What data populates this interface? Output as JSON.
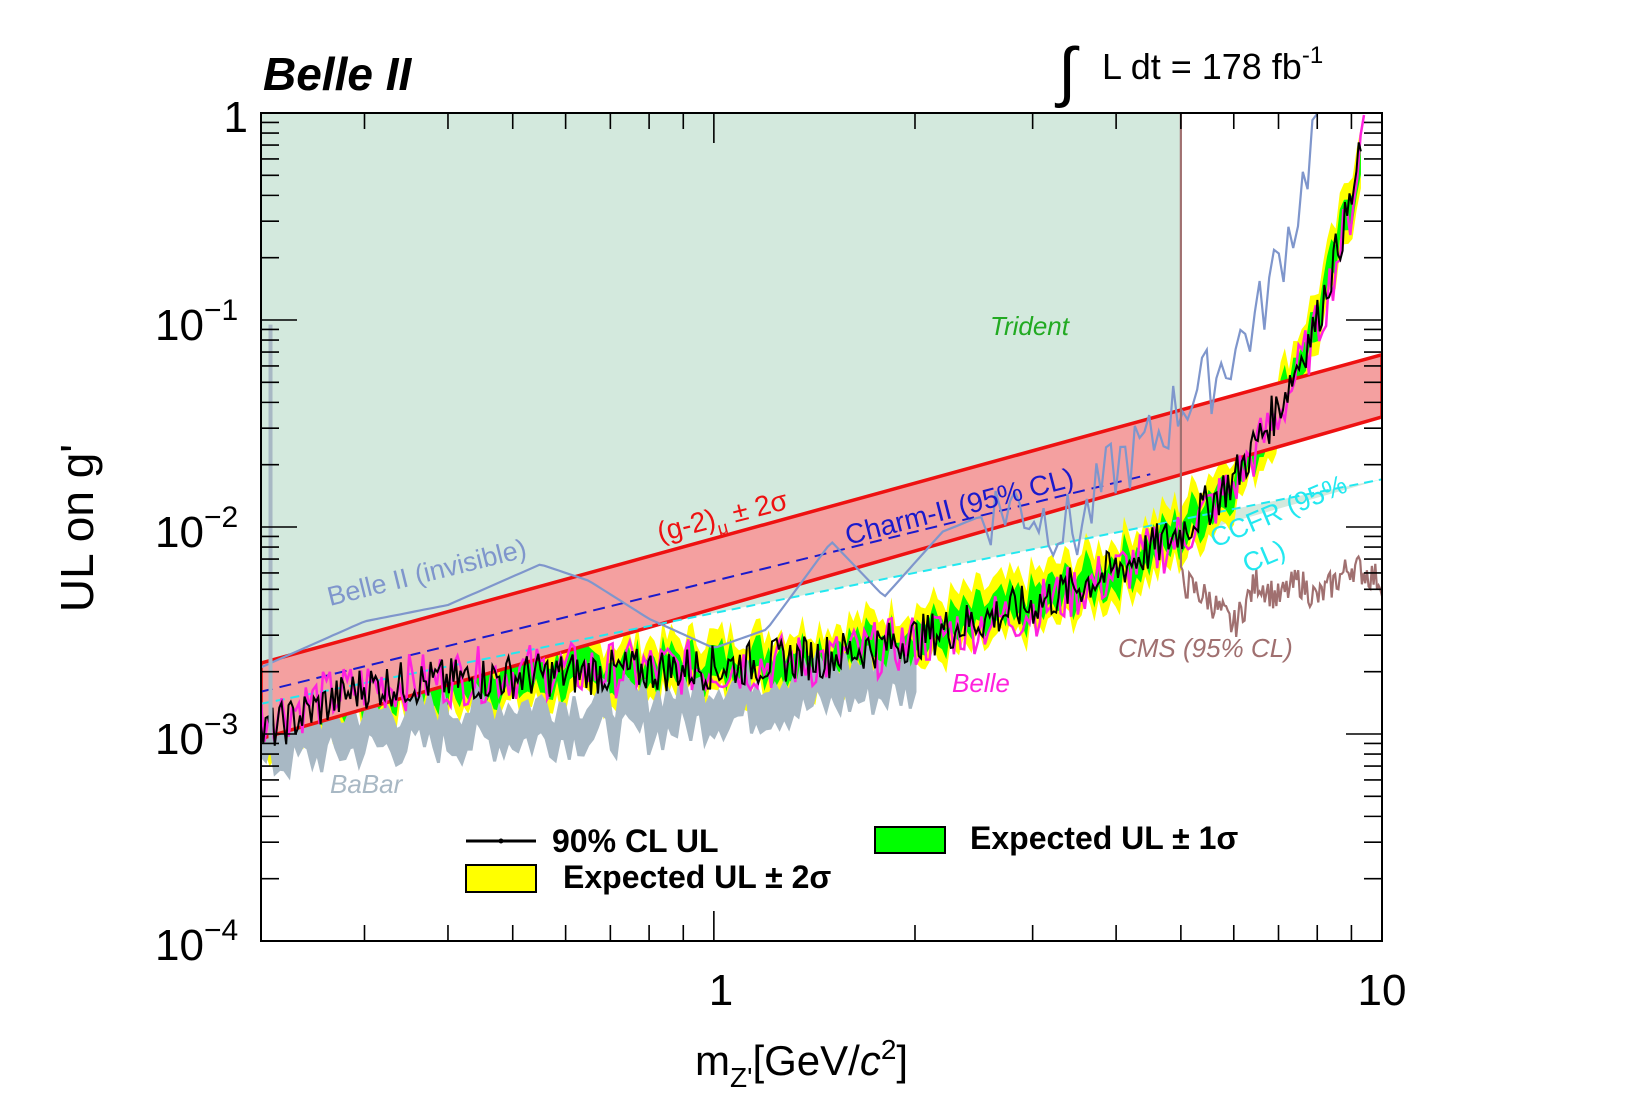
{
  "chart_data": {
    "type": "line",
    "experiment": "Belle II",
    "luminosity_prefix": "L dt = 178 fb",
    "luminosity_exp": "-1",
    "xscale": "log",
    "yscale": "log",
    "xlim": [
      0.21,
      10.0
    ],
    "ylim": [
      0.0001,
      1.0
    ],
    "xlabel_main": "m",
    "xlabel_sub": "Z'",
    "xlabel_rest": "[GeV/",
    "xlabel_c": "c",
    "xlabel_sup": "2",
    "xlabel_close": "]",
    "ylabel": "UL on g'",
    "x_major_ticks": [
      {
        "value": 1,
        "label": "1"
      },
      {
        "value": 10,
        "label": "10"
      }
    ],
    "y_major_ticks": [
      {
        "value": 1,
        "base": "1",
        "exp": ""
      },
      {
        "value": 0.1,
        "base": "10",
        "exp": "−1"
      },
      {
        "value": 0.01,
        "base": "10",
        "exp": "−2"
      },
      {
        "value": 0.001,
        "base": "10",
        "exp": "−3"
      },
      {
        "value": 0.0001,
        "base": "10",
        "exp": "−4"
      }
    ],
    "annotations": {
      "trident": "Trident",
      "g2_main": "(g-2)",
      "g2_sub": "μ",
      "g2_rest": "± 2σ",
      "charm": "Charm-II (95% CL)",
      "belle2_invisible": "Belle II (invisible)",
      "ccfr_line1": "CCFR (95%",
      "ccfr_line2": "CL)",
      "cms": "CMS (95% CL)",
      "belle": "Belle",
      "babar": "BaBar"
    },
    "legend": [
      {
        "label": "90% CL UL",
        "color": "#000000",
        "kind": "line"
      },
      {
        "label": "Expected UL ± 1σ",
        "color": "#00ff00",
        "kind": "box"
      },
      {
        "label": "Expected UL ± 2σ",
        "color": "#ffff00",
        "kind": "box"
      }
    ],
    "colors": {
      "trident_fill": "#d3e9dd",
      "observed": "#000000",
      "band_1sigma": "#00ff00",
      "band_2sigma": "#ffff00",
      "g2_band_fill": "#f4a0a0",
      "g2_band_edge": "#ee1111",
      "charm": "#1a1acc",
      "belle2_invisible": "#7f96cc",
      "ccfr": "#22e8f0",
      "cms": "#a07070",
      "belle": "#ff22dd",
      "babar": "#a8b8c4",
      "trident_text": "#22aa22"
    },
    "series": [
      {
        "name": "Trident excluded region (upper edge)",
        "x": [
          0.21,
          5.0,
          5.0,
          10.0
        ],
        "y": [
          1.0,
          1.0,
          0.009,
          0.017
        ]
      },
      {
        "name": "(g-2)mu +2sigma",
        "x": [
          0.21,
          10.0
        ],
        "y": [
          0.0022,
          0.068
        ]
      },
      {
        "name": "(g-2)mu -2sigma",
        "x": [
          0.21,
          10.0
        ],
        "y": [
          0.00095,
          0.034
        ]
      },
      {
        "name": "Charm-II (95% CL)",
        "x": [
          0.21,
          4.5
        ],
        "y": [
          0.0016,
          0.018
        ]
      },
      {
        "name": "CCFR (95% CL)",
        "x": [
          0.21,
          10.0
        ],
        "y": [
          0.0014,
          0.017
        ]
      },
      {
        "name": "Belle II (invisible)",
        "x": [
          0.21,
          0.3,
          0.4,
          0.55,
          0.65,
          0.8,
          1.0,
          1.2,
          1.5,
          1.8,
          2.2,
          2.8,
          3.5,
          4.0,
          4.5,
          5.0,
          5.5,
          6.5,
          7.5,
          8.0
        ],
        "y": [
          0.0021,
          0.0035,
          0.0042,
          0.0066,
          0.0055,
          0.0036,
          0.0026,
          0.0032,
          0.0085,
          0.0046,
          0.0095,
          0.013,
          0.0095,
          0.02,
          0.025,
          0.04,
          0.05,
          0.1,
          0.35,
          1.0
        ]
      },
      {
        "name": "CMS (95% CL)",
        "x": [
          5.0,
          5.5,
          6.0,
          6.5,
          7.0,
          7.5,
          8.0,
          9.0,
          10.0
        ],
        "y": [
          0.0055,
          0.0045,
          0.0033,
          0.0055,
          0.0045,
          0.0055,
          0.0045,
          0.0065,
          0.0055
        ]
      },
      {
        "name": "Belle",
        "x": [
          0.21,
          0.3,
          0.5,
          1.0,
          1.5,
          2.0,
          3.0,
          4.0,
          5.0,
          6.0,
          7.0,
          8.0,
          9.0,
          9.4
        ],
        "y": [
          0.0012,
          0.0017,
          0.002,
          0.0021,
          0.0023,
          0.0028,
          0.004,
          0.006,
          0.009,
          0.016,
          0.035,
          0.09,
          0.35,
          0.95
        ]
      },
      {
        "name": "BaBar",
        "x": [
          0.21,
          0.3,
          0.5,
          0.8,
          1.0,
          1.5,
          2.0
        ],
        "y": [
          0.0009,
          0.0011,
          0.0012,
          0.0013,
          0.0015,
          0.0018,
          0.0021
        ]
      },
      {
        "name": "Expected UL central",
        "x": [
          0.21,
          0.3,
          0.5,
          1.0,
          1.5,
          2.0,
          3.0,
          4.0,
          5.0,
          6.0,
          7.0,
          8.0,
          9.0,
          9.3
        ],
        "y": [
          0.0011,
          0.0016,
          0.0019,
          0.0021,
          0.0024,
          0.0029,
          0.0042,
          0.0062,
          0.0095,
          0.017,
          0.038,
          0.1,
          0.38,
          0.7
        ]
      },
      {
        "name": "90% CL UL (observed)",
        "x": [
          0.21,
          0.3,
          0.5,
          1.0,
          1.5,
          2.0,
          3.0,
          4.0,
          5.0,
          6.0,
          7.0,
          8.0,
          9.0,
          9.3
        ],
        "y": [
          0.001,
          0.0017,
          0.0019,
          0.0021,
          0.0024,
          0.0029,
          0.0042,
          0.0062,
          0.0095,
          0.017,
          0.038,
          0.1,
          0.38,
          0.65
        ]
      }
    ],
    "bands": {
      "sigma2_factor": [
        0.72,
        1.42
      ],
      "sigma1_factor": [
        0.84,
        1.18
      ]
    }
  }
}
